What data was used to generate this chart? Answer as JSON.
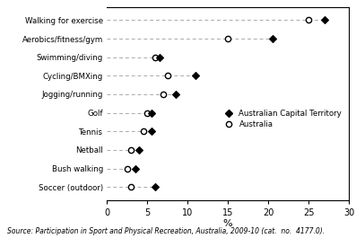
{
  "categories": [
    "Walking for exercise",
    "Aerobics/fitness/gym",
    "Swimming/diving",
    "Cycling/BMXing",
    "Jogging/running",
    "Golf",
    "Tennis",
    "Netball",
    "Bush walking",
    "Soccer (outdoor)"
  ],
  "act_values": [
    27.0,
    20.5,
    6.5,
    11.0,
    8.5,
    5.5,
    5.5,
    4.0,
    3.5,
    6.0
  ],
  "aus_values": [
    25.0,
    15.0,
    6.0,
    7.5,
    7.0,
    5.0,
    4.5,
    3.0,
    2.5,
    3.0
  ],
  "xlim": [
    0,
    30
  ],
  "xticks": [
    0,
    5,
    10,
    15,
    20,
    25,
    30
  ],
  "xlabel": "%",
  "legend_act": "Australian Capital Territory",
  "legend_aus": "Australia",
  "source_text": "Source: Participation in Sport and Physical Recreation, Australia, 2009-10 (cat.  no.  4177.0).",
  "act_color": "#000000",
  "aus_color": "#000000",
  "line_color": "#aaaaaa",
  "bg_color": "#ffffff"
}
